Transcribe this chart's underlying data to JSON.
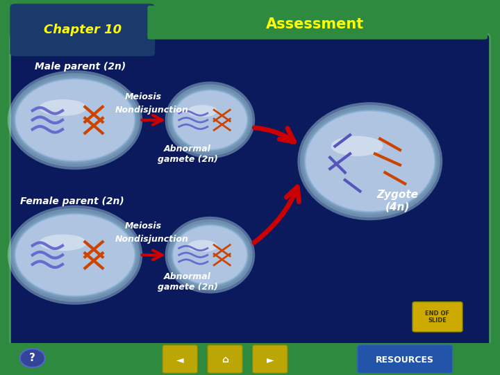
{
  "bg_outer": "#2d8a3e",
  "bg_header_left": "#1a3a6b",
  "bg_header_right": "#2d8a3e",
  "bg_main": "#0a1a5c",
  "chapter_text": "Chapter 10",
  "chapter_color": "#ffff00",
  "assessment_text": "Assessment",
  "assessment_color": "#ffff00",
  "male_parent_text": "Male parent (2n)",
  "female_parent_text": "Female parent (2n)",
  "meiosis_text": "Meiosis",
  "nondisjunction_text": "Nondisjunction",
  "abnormal_gamete_text": "Abnormal\ngamete (2n)",
  "zygote_text": "Zygote\n(4n)",
  "label_color": "#ffffff",
  "arrow_color": "#cc0000",
  "label_fontsize": 10,
  "small_fontsize": 9,
  "zygote_fontsize": 11,
  "header_fontsize": 13,
  "assessment_fontsize": 15
}
